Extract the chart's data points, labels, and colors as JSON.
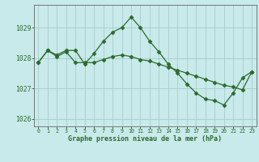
{
  "line1_x": [
    0,
    1,
    2,
    3,
    4,
    5,
    6,
    7,
    8,
    9,
    10,
    11,
    12,
    13,
    14,
    15,
    16,
    17,
    18,
    19,
    20,
    21,
    22,
    23
  ],
  "line1_y": [
    1027.85,
    1028.25,
    1028.1,
    1028.25,
    1028.25,
    1027.8,
    1028.15,
    1028.55,
    1028.85,
    1029.0,
    1029.35,
    1029.0,
    1028.55,
    1028.2,
    1027.8,
    1027.5,
    1027.15,
    1026.85,
    1026.65,
    1026.6,
    1026.45,
    1026.85,
    1027.35,
    1027.55
  ],
  "line2_x": [
    0,
    1,
    2,
    3,
    4,
    5,
    6,
    7,
    8,
    9,
    10,
    11,
    12,
    13,
    14,
    15,
    16,
    17,
    18,
    19,
    20,
    21,
    22,
    23
  ],
  "line2_y": [
    1027.85,
    1028.25,
    1028.05,
    1028.2,
    1027.85,
    1027.85,
    1027.85,
    1027.95,
    1028.05,
    1028.1,
    1028.05,
    1027.95,
    1027.9,
    1027.8,
    1027.7,
    1027.6,
    1027.5,
    1027.4,
    1027.3,
    1027.2,
    1027.1,
    1027.05,
    1026.95,
    1027.55
  ],
  "line_color": "#2d6a2d",
  "bg_color": "#c8eaea",
  "grid_color": "#a8cccc",
  "text_color": "#2d6a2d",
  "xlabel": "Graphe pression niveau de la mer (hPa)",
  "ylim": [
    1025.75,
    1029.75
  ],
  "yticks": [
    1026,
    1027,
    1028,
    1029
  ],
  "xlim": [
    -0.5,
    23.5
  ],
  "xticks": [
    0,
    1,
    2,
    3,
    4,
    5,
    6,
    7,
    8,
    9,
    10,
    11,
    12,
    13,
    14,
    15,
    16,
    17,
    18,
    19,
    20,
    21,
    22,
    23
  ],
  "figwidth": 3.2,
  "figheight": 2.0,
  "dpi": 100
}
